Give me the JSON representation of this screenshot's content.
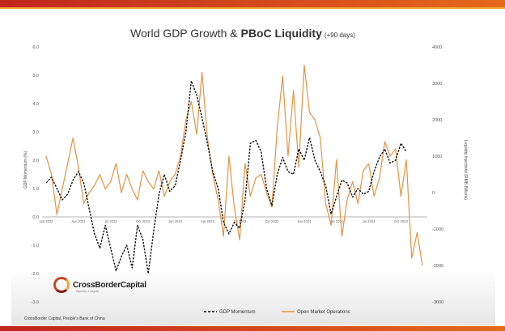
{
  "brand": {
    "name": "CrossBorderCapital",
    "tagline": "liquidity insights",
    "source": "CrossBorder Capital, People's Bank of China"
  },
  "chart_data": {
    "type": "line",
    "title_prefix": "World GDP Growth & ",
    "title_bold": "PBoC Liquidity",
    "title_suffix": "(+90 days)",
    "ylabel_left": "GDP Momentum (%)",
    "ylabel_right": "Liquidity Injections (RMB Billions)",
    "ylim_left": [
      -3,
      6
    ],
    "ylim_right": [
      -3000,
      4000
    ],
    "yticks_left": [
      "6.0",
      "5.0",
      "4.0",
      "3.0",
      "2.0",
      "1.0",
      "0.0",
      "-1.0",
      "-2.0",
      "-3.0"
    ],
    "yticks_right": [
      "4000",
      "3000",
      "2000",
      "1000",
      "0",
      "-1000",
      "-2000",
      "-3000"
    ],
    "xticks": [
      "Jan 2022",
      "Apr 2022",
      "Jul 2022",
      "Oct 2022",
      "Jan 2023",
      "Apr 2023",
      "Jul 2023",
      "Oct 2023",
      "Jan 2024",
      "Apr 2024",
      "Jul 2024",
      "Oct 2024"
    ],
    "legend_position": "bottom",
    "grid": false,
    "series": [
      {
        "name": "GDP Momentum",
        "axis": "left",
        "color": "#111111",
        "style": "dashed",
        "x_month_index": [
          0,
          0.5,
          1,
          1.5,
          2,
          2.5,
          3,
          3.5,
          4,
          4.5,
          5,
          5.5,
          6,
          6.5,
          7,
          7.5,
          8,
          8.5,
          9,
          9.5,
          10,
          10.5,
          11,
          11.5,
          12,
          12.5,
          13,
          13.5,
          14,
          14.5,
          15,
          15.5,
          16,
          16.5,
          17,
          17.5,
          18,
          18.5,
          19,
          19.5,
          20,
          20.5,
          21,
          21.5,
          22,
          22.5,
          23,
          23.5,
          24,
          24.5,
          25,
          25.5,
          26,
          26.5,
          27,
          27.5,
          28,
          28.5,
          29,
          29.5,
          30,
          30.5,
          31,
          31.5,
          32,
          32.5,
          33,
          33.5,
          34,
          34.5,
          35
        ],
        "values": [
          1.2,
          1.4,
          1.0,
          0.6,
          0.8,
          1.3,
          1.6,
          1.2,
          0.3,
          -0.6,
          -1.1,
          -0.3,
          -1.1,
          -1.9,
          -1.4,
          -1.0,
          -1.8,
          -0.3,
          -0.8,
          -2.0,
          -0.5,
          0.8,
          1.5,
          0.9,
          1.1,
          2.0,
          3.0,
          4.8,
          4.3,
          3.5,
          2.6,
          1.6,
          1.0,
          -0.2,
          -0.6,
          -0.2,
          -0.4,
          0.6,
          2.6,
          2.7,
          2.3,
          1.0,
          0.4,
          1.5,
          2.1,
          1.6,
          1.5,
          2.4,
          2.0,
          2.8,
          2.0,
          1.6,
          1.1,
          0.1,
          0.7,
          1.3,
          1.2,
          0.7,
          1.0,
          0.8,
          0.9,
          1.6,
          2.1,
          2.4,
          1.9,
          2.0,
          2.6,
          2.3,
          null,
          null,
          null
        ]
      },
      {
        "name": "Open Market Operations",
        "axis": "right",
        "color": "#e09545",
        "style": "solid",
        "x_month_index": [
          0,
          0.5,
          1,
          1.5,
          2,
          2.5,
          3,
          3.5,
          4,
          4.5,
          5,
          5.5,
          6,
          6.5,
          7,
          7.5,
          8,
          8.5,
          9,
          9.5,
          10,
          10.5,
          11,
          11.5,
          12,
          12.5,
          13,
          13.5,
          14,
          14.5,
          15,
          15.5,
          16,
          16.5,
          17,
          17.5,
          18,
          18.5,
          19,
          19.5,
          20,
          20.5,
          21,
          21.5,
          22,
          22.5,
          23,
          23.5,
          24,
          24.5,
          25,
          25.5,
          26,
          26.5,
          27,
          27.5,
          28,
          28.5,
          29,
          29.5,
          30,
          30.5,
          31,
          31.5,
          32,
          32.5,
          33,
          33.5,
          34,
          34.5,
          35
        ],
        "values": [
          1000,
          500,
          -600,
          100,
          800,
          1500,
          700,
          -300,
          0,
          200,
          500,
          100,
          300,
          800,
          0,
          500,
          100,
          -200,
          600,
          300,
          100,
          600,
          -100,
          300,
          500,
          1000,
          2000,
          2500,
          1600,
          3300,
          1500,
          500,
          -200,
          -1200,
          1000,
          -400,
          -1300,
          800,
          -100,
          400,
          500,
          0,
          -400,
          1800,
          3200,
          1000,
          2800,
          700,
          3500,
          2200,
          2000,
          1500,
          -300,
          -900,
          900,
          -1200,
          -200,
          300,
          -300,
          600,
          800,
          -100,
          400,
          1400,
          1000,
          1200,
          -100,
          900,
          -1800,
          -1100,
          -2000
        ]
      }
    ]
  }
}
